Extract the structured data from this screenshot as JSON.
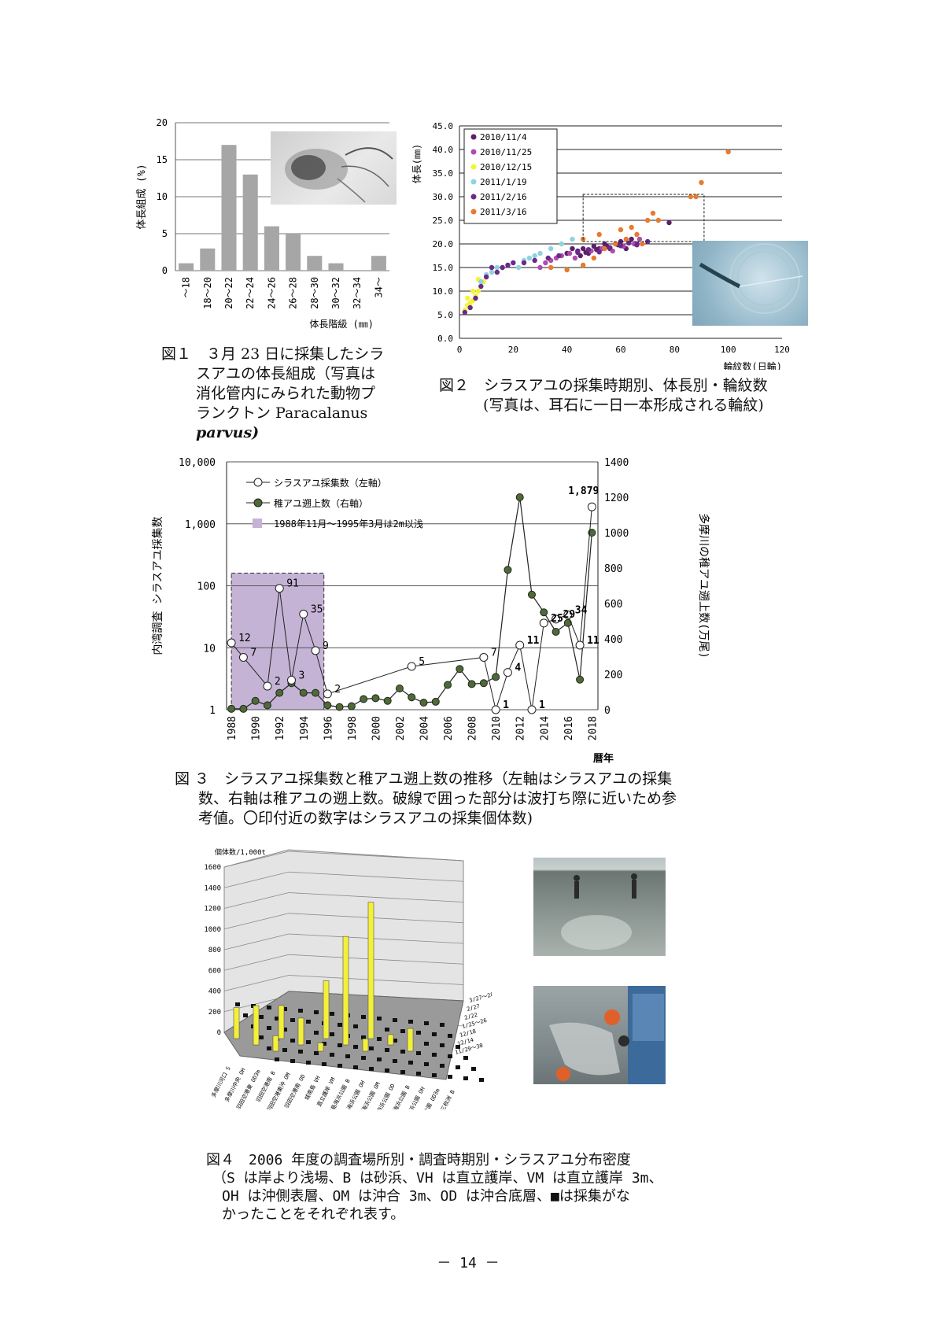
{
  "fig1": {
    "ylabel": "体長組成 (%)",
    "xlabel": "体長階級 (㎜)",
    "caption": [
      "図１　３月 23 日に採集したシラ",
      "スアユの体長組成（写真は",
      "消化管内にみられた動物プ",
      "ランクトン Paracalanus",
      "parvus)"
    ],
    "chart_data": {
      "type": "bar",
      "categories": [
        "～18",
        "18～20",
        "20～22",
        "22～24",
        "24～26",
        "26～28",
        "28～30",
        "30～32",
        "32～34",
        "34～"
      ],
      "values": [
        1,
        3,
        17,
        13,
        6,
        5,
        2,
        1,
        0,
        2
      ],
      "ylim": [
        0,
        20
      ],
      "yticks": [
        0,
        5,
        10,
        15,
        20
      ],
      "bar_color": "#a6a6a6",
      "xlabel": "体長階級 (㎜)",
      "ylabel": "体長組成 (%)"
    }
  },
  "fig2": {
    "ylabel": "体長(㎜)",
    "xlabel": "輪紋数(日輪)",
    "caption": [
      "図２　シラスアユの採集時期別、体長別・輪紋数",
      "(写真は、耳石に一日一本形成される輪紋)"
    ],
    "chart_data": {
      "type": "scatter",
      "xlim": [
        0,
        120
      ],
      "ylim": [
        0,
        45
      ],
      "xticks": [
        0,
        20,
        40,
        60,
        80,
        100,
        120
      ],
      "yticks": [
        "0.0",
        "5.0",
        "10.0",
        "15.0",
        "20.0",
        "25.0",
        "30.0",
        "35.0",
        "40.0",
        "45.0"
      ],
      "series": [
        {
          "name": "2010/11/4",
          "color": "#5b1f6b",
          "points": [
            [
              40,
              18
            ],
            [
              42,
              19
            ],
            [
              44,
              18.5
            ],
            [
              46,
              19
            ],
            [
              48,
              18
            ],
            [
              50,
              19.5
            ],
            [
              52,
              19
            ],
            [
              54,
              20
            ],
            [
              56,
              19
            ],
            [
              58,
              20
            ],
            [
              60,
              20.5
            ],
            [
              62,
              19
            ],
            [
              64,
              21
            ],
            [
              66,
              20
            ],
            [
              78,
              24.5
            ],
            [
              45,
              17.5
            ],
            [
              47,
              18.2
            ],
            [
              51,
              18.8
            ],
            [
              55,
              19.4
            ],
            [
              59,
              19.8
            ]
          ]
        },
        {
          "name": "2010/11/25",
          "color": "#b04bb0",
          "points": [
            [
              30,
              15
            ],
            [
              32,
              16
            ],
            [
              34,
              16.5
            ],
            [
              36,
              17
            ],
            [
              38,
              17.5
            ],
            [
              41,
              18
            ],
            [
              43,
              17
            ],
            [
              49,
              18.5
            ],
            [
              53,
              19
            ],
            [
              57,
              18.5
            ],
            [
              61,
              19.5
            ],
            [
              65,
              20
            ],
            [
              67,
              21
            ]
          ]
        },
        {
          "name": "2010/12/15",
          "color": "#f3f33a",
          "points": [
            [
              2,
              6
            ],
            [
              3,
              7
            ],
            [
              4,
              7.5
            ],
            [
              5,
              8
            ],
            [
              6,
              9
            ],
            [
              7,
              10
            ],
            [
              8,
              11
            ],
            [
              9,
              12
            ],
            [
              10,
              13
            ],
            [
              3,
              8.5
            ],
            [
              5,
              10
            ],
            [
              7,
              12.5
            ]
          ]
        },
        {
          "name": "2011/1/19",
          "color": "#8fd3e0",
          "points": [
            [
              8,
              12
            ],
            [
              10,
              13.5
            ],
            [
              12,
              14
            ],
            [
              14,
              15
            ],
            [
              16,
              15
            ],
            [
              18,
              15.5
            ],
            [
              20,
              16
            ],
            [
              22,
              15
            ],
            [
              24,
              16.5
            ],
            [
              26,
              17
            ],
            [
              28,
              17.5
            ],
            [
              30,
              18
            ],
            [
              34,
              19
            ],
            [
              38,
              20
            ],
            [
              42,
              21
            ]
          ]
        },
        {
          "name": "2011/2/16",
          "color": "#6a2a8a",
          "points": [
            [
              2,
              5.5
            ],
            [
              4,
              6.5
            ],
            [
              6,
              8.5
            ],
            [
              8,
              11
            ],
            [
              10,
              13
            ],
            [
              12,
              15
            ],
            [
              14,
              14
            ],
            [
              16,
              15
            ],
            [
              18,
              15.5
            ],
            [
              20,
              16
            ],
            [
              24,
              16
            ],
            [
              28,
              16.5
            ],
            [
              33,
              17
            ],
            [
              37,
              17.5
            ],
            [
              44,
              18.2
            ],
            [
              48,
              18.8
            ],
            [
              52,
              18.3
            ],
            [
              56,
              19.2
            ],
            [
              60,
              19.6
            ],
            [
              63,
              20.2
            ],
            [
              66,
              19.8
            ],
            [
              70,
              20.5
            ]
          ]
        },
        {
          "name": "2011/3/16",
          "color": "#e87b2e",
          "points": [
            [
              34,
              15
            ],
            [
              40,
              14.5
            ],
            [
              46,
              15.5
            ],
            [
              50,
              17
            ],
            [
              54,
              19
            ],
            [
              58,
              20
            ],
            [
              60,
              23
            ],
            [
              62,
              21
            ],
            [
              64,
              23.5
            ],
            [
              66,
              22
            ],
            [
              68,
              20
            ],
            [
              70,
              25
            ],
            [
              72,
              26.5
            ],
            [
              74,
              25
            ],
            [
              86,
              30
            ],
            [
              88,
              30
            ],
            [
              90,
              33
            ],
            [
              100,
              39.5
            ],
            [
              46,
              21
            ],
            [
              52,
              22
            ]
          ]
        }
      ]
    }
  },
  "fig3": {
    "ylabel_left": "内湾調査 シラスアユ採集数",
    "ylabel_right": "多摩川の稚アユ遡上数(万尾)",
    "xlabel": "暦年",
    "legend": [
      "シラスアユ採集数（左軸）",
      "稚アユ遡上数（右軸）",
      "1988年11月～1995年3月は2m以浅"
    ],
    "left_ticks": [
      "10,000",
      "1,000",
      "100",
      "10",
      "1"
    ],
    "right_ticks": [
      "1400",
      "1200",
      "1000",
      "800",
      "600",
      "400",
      "200",
      "0"
    ],
    "x_ticks": [
      "1988",
      "1990",
      "1992",
      "1994",
      "1996",
      "1998",
      "2000",
      "2002",
      "2004",
      "2006",
      "2008",
      "2010",
      "2012",
      "2014",
      "2016",
      "2018"
    ],
    "caption": [
      "図 ３　シラスアユ採集数と稚アユ遡上数の推移（左軸はシラスアユの採集",
      "数、右軸は稚アユの遡上数。破線で囲った部分は波打ち際に近いため参",
      "考値。〇印付近の数字はシラスアユの採集個体数)"
    ],
    "chart_data": {
      "type": "line",
      "x": [
        1988,
        1989,
        1990,
        1991,
        1992,
        1993,
        1994,
        1995,
        1996,
        1997,
        1998,
        1999,
        2000,
        2001,
        2002,
        2003,
        2004,
        2005,
        2006,
        2007,
        2008,
        2009,
        2010,
        2011,
        2012,
        2013,
        2014,
        2015,
        2016,
        2017,
        2018
      ],
      "shirasu_points": [
        [
          1988,
          12
        ],
        [
          1989,
          7
        ],
        [
          1991,
          2.4
        ],
        [
          1992,
          91
        ],
        [
          1993,
          3
        ],
        [
          1994,
          35
        ],
        [
          1995,
          9
        ],
        [
          1996,
          1.8
        ],
        [
          2003,
          5
        ],
        [
          2009,
          7
        ],
        [
          2010,
          1
        ],
        [
          2011,
          4
        ],
        [
          2012,
          11
        ],
        [
          2013,
          1
        ],
        [
          2014,
          25
        ],
        [
          2015,
          29
        ],
        [
          2016,
          34
        ],
        [
          2017,
          11
        ],
        [
          2018,
          1879
        ]
      ],
      "shirasu_labels": [
        [
          "12",
          1988,
          12
        ],
        [
          "7",
          1989,
          7
        ],
        [
          "2",
          1991,
          2.4
        ],
        [
          "91",
          1992,
          91
        ],
        [
          "3",
          1993,
          3
        ],
        [
          "35",
          1994,
          35
        ],
        [
          "9",
          1995,
          9
        ],
        [
          "2",
          1996,
          1.8
        ],
        [
          "5",
          2003,
          5
        ],
        [
          "7",
          2009,
          7
        ],
        [
          "1",
          2010,
          1
        ],
        [
          "4",
          2011,
          4
        ],
        [
          "11",
          2012,
          11
        ],
        [
          "1",
          2013,
          1
        ],
        [
          "25",
          2014,
          25
        ],
        [
          "29",
          2015,
          29
        ],
        [
          "34",
          2016,
          34
        ],
        [
          "11",
          2017,
          11
        ],
        [
          "1,879",
          2018,
          1879
        ]
      ],
      "ayu_values": [
        5,
        5,
        50,
        25,
        95,
        150,
        95,
        95,
        25,
        15,
        20,
        60,
        65,
        50,
        120,
        70,
        40,
        45,
        140,
        230,
        145,
        150,
        185,
        790,
        1200,
        650,
        550,
        440,
        490,
        170,
        1000
      ],
      "left_log_range": [
        1,
        10000
      ],
      "right_range": [
        0,
        1400
      ],
      "shaded_range": [
        1988,
        1995.7
      ]
    }
  },
  "fig4": {
    "unit_label": "個体数/1,000t",
    "yticks": [
      "1600",
      "1400",
      "1200",
      "1000",
      "800",
      "600",
      "400",
      "200",
      "0"
    ],
    "sites": [
      "多摩川河口 S",
      "多摩川中央 OH",
      "羽田空港東 OD3m",
      "羽田空港南 B",
      "羽田空港東沖 OM",
      "羽田空港南 OD",
      "城南島 VH",
      "直立護岸 VM",
      "城南島海浜公園 B",
      "城南島海浜公園 OH",
      "城南島海浜公園 OM",
      "城南島海浜公園 OD",
      "お台場海浜公園 B",
      "お台場海浜公園 OH",
      "お台場海浜公園 OD3m",
      "三枚洲 B"
    ],
    "dates": [
      "3/27～28",
      "2/27",
      "2/22",
      "1/25～26",
      "12/18",
      "12/14",
      "11/29～30"
    ],
    "caption": [
      "図４　2006 年度の調査場所別・調査時期別・シラスアユ分布密度",
      "（S は岸より浅場、B は砂浜、VH は直立護岸、VM は直立護岸 3m、",
      "OH は沖側表層、OM は沖合 3m、OD は沖合底層、■は採集がな",
      "かったことをそれぞれ表す。"
    ],
    "chart_data": {
      "type": "bar",
      "ylim": [
        0,
        1600
      ],
      "bars": [
        {
          "site": "多摩川河口 S",
          "value": 300
        },
        {
          "site": "多摩川中央 OH",
          "value": 380
        },
        {
          "site": "羽田空港東 OD3m",
          "value": 150
        },
        {
          "site": "羽田空港南 B",
          "value": 320
        },
        {
          "site": "羽田空港東沖 OM",
          "value": 260
        },
        {
          "site": "羽田空港南 OD",
          "value": 80
        },
        {
          "site": "城南島海浜公園 B",
          "value": 560
        },
        {
          "site": "城南島海浜公園 OM",
          "value": 1050
        },
        {
          "site": "城南島海浜公園 OD",
          "value": 120
        },
        {
          "site": "お台場海浜公園 B",
          "value": 1320
        },
        {
          "site": "お台場海浜公園 OD3m",
          "value": 100
        },
        {
          "site": "三枚洲 B",
          "value": 220
        }
      ]
    }
  },
  "page_number": "－ 14 －"
}
